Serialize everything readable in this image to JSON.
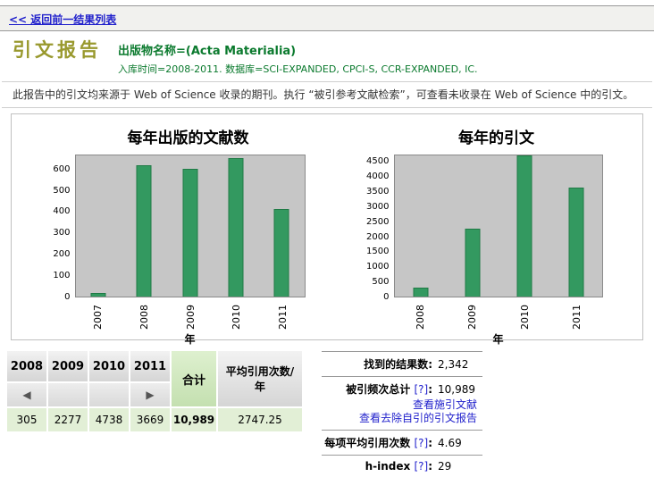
{
  "topbar": {
    "back_link": "<< 返回前一结果列表"
  },
  "header": {
    "title": "引文报告",
    "publication": "出版物名称=(Acta Materialia)",
    "scope": "入库时间=2008-2011. 数据库=SCI-EXPANDED, CPCI-S, CCR-EXPANDED, IC."
  },
  "note": "此报告中的引文均来源于 Web of Science 收录的期刊。执行 “被引参考文献检索”，可查看未收录在 Web of Science 中的引文。",
  "chart_data": [
    {
      "type": "bar",
      "title": "每年出版的文献数",
      "categories": [
        "2007",
        "2008",
        "2009",
        "2010",
        "2011"
      ],
      "values": [
        15,
        622,
        608,
        658,
        415
      ],
      "xlabel": "年",
      "ylabel": "",
      "ylim": [
        0,
        670
      ],
      "yticks": [
        0,
        100,
        200,
        300,
        400,
        500,
        600
      ],
      "bar_color": "#339960",
      "plot_background": "#c6c6c6",
      "grid": false,
      "legend": "none"
    },
    {
      "type": "bar",
      "title": "每年的引文",
      "categories": [
        "2008",
        "2009",
        "2010",
        "2011"
      ],
      "values": [
        305,
        2277,
        4738,
        3669
      ],
      "xlabel": "年",
      "ylabel": "",
      "ylim": [
        0,
        4740
      ],
      "yticks": [
        0,
        500,
        1000,
        1500,
        2000,
        2500,
        3000,
        3500,
        4000,
        4500
      ],
      "bar_color": "#339960",
      "plot_background": "#c6c6c6",
      "grid": false,
      "legend": "none"
    }
  ],
  "table": {
    "headers": [
      "2008",
      "2009",
      "2010",
      "2011",
      "合计",
      "平均引用次数/年"
    ],
    "prev": "◀",
    "next": "▶",
    "values": [
      "305",
      "2277",
      "4738",
      "3669",
      "10,989",
      "2747.25"
    ]
  },
  "summary": {
    "results_label": "找到的结果数",
    "results_value": "2,342",
    "cited_label": "被引频次总计",
    "cited_value": "10,989",
    "link_citing": "查看施引文献",
    "link_no_self": "查看去除自引的引文报告",
    "avg_label": "每项平均引用次数",
    "avg_value": "4.69",
    "hindex_label": "h-index",
    "hindex_value": "29"
  },
  "ui": {
    "colon": ":",
    "help_badge": "[?]"
  },
  "colors": {
    "title_olive": "#99992e",
    "publication_green": "#0b7a2e",
    "link_blue": "#2222cc",
    "bar_green": "#339960",
    "plot_gray": "#c6c6c6",
    "total_green": "#c4e0b0",
    "value_row_green": "#e2efd6"
  }
}
